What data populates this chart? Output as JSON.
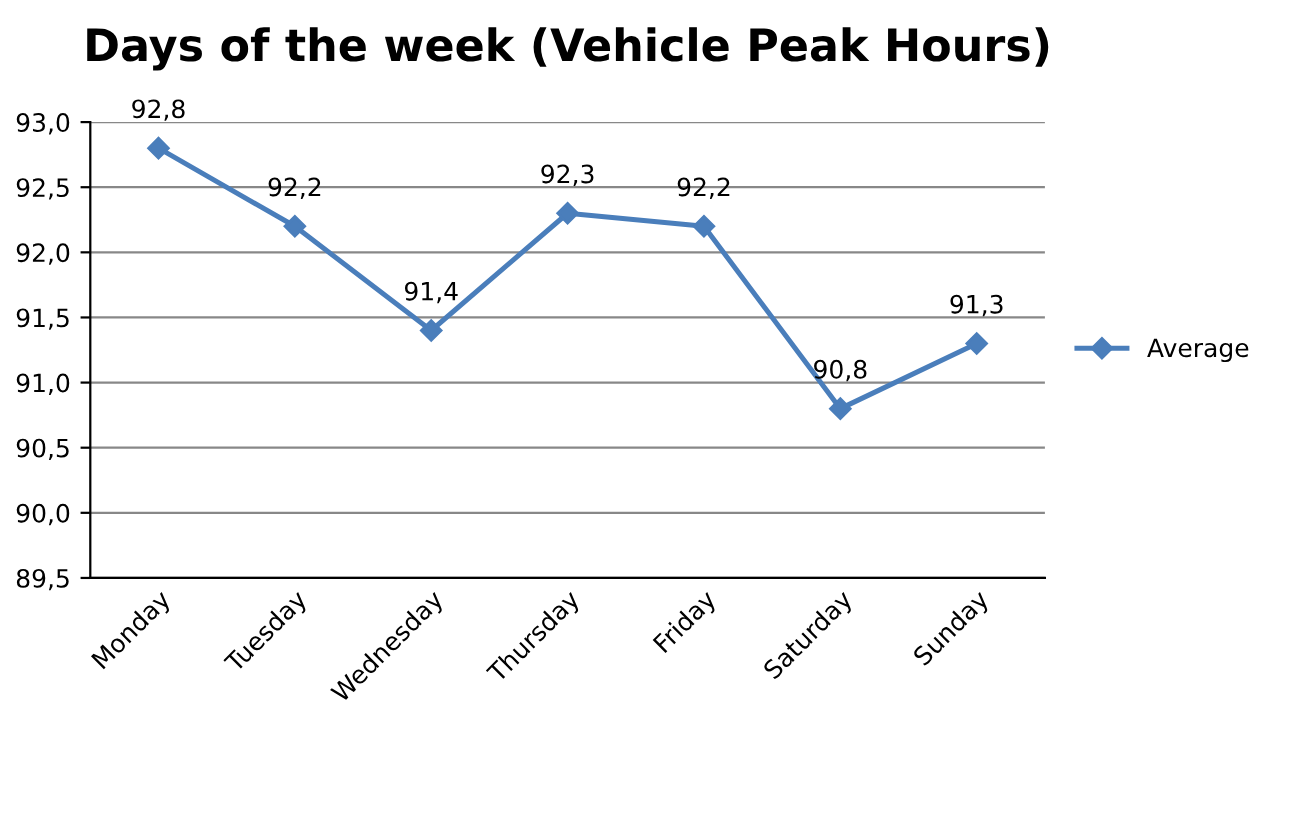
{
  "chart_data": {
    "type": "line",
    "title": "Days of the week (Vehicle Peak Hours)",
    "categories": [
      "Monday",
      "Tuesday",
      "Wednesday",
      "Thursday",
      "Friday",
      "Saturday",
      "Sunday"
    ],
    "series": [
      {
        "name": "Average",
        "color": "#4a7ebb",
        "values": [
          92.8,
          92.2,
          91.4,
          92.3,
          92.2,
          90.8,
          91.3
        ],
        "value_labels": [
          "92,8",
          "92,2",
          "91,4",
          "92,3",
          "92,2",
          "90,8",
          "91,3"
        ]
      }
    ],
    "ylim": [
      89.5,
      93.0
    ],
    "yticks": [
      {
        "value": 89.5,
        "label": "89,5"
      },
      {
        "value": 90.0,
        "label": "90,0"
      },
      {
        "value": 90.5,
        "label": "90,5"
      },
      {
        "value": 91.0,
        "label": "91,0"
      },
      {
        "value": 91.5,
        "label": "91,5"
      },
      {
        "value": 92.0,
        "label": "92,0"
      },
      {
        "value": 92.5,
        "label": "92,5"
      },
      {
        "value": 93.0,
        "label": "93,0"
      }
    ],
    "grid": "y",
    "legend": "right",
    "marker": "diamond",
    "line_style": "solid"
  }
}
